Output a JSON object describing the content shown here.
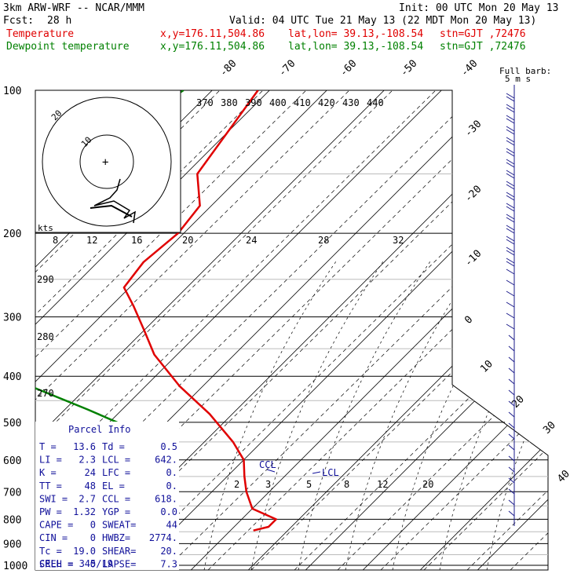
{
  "header": {
    "model": "3km ARW-WRF -- NCAR/MMM",
    "init": "Init: 00 UTC Mon 20 May 13",
    "fcst_label": "Fcst:",
    "fcst_value": "28 h",
    "valid": "Valid: 04 UTC Tue 21 May 13 (22 MDT Mon 20 May 13)"
  },
  "legend": [
    {
      "name": "Temperature",
      "coords": "x,y=176.11,504.86",
      "latlon": "lat,lon= 39.13,-108.54",
      "stn": "stn=GJT ,72476",
      "color": "#e00000"
    },
    {
      "name": "Dewpoint temperature",
      "coords": "x,y=176.11,504.86",
      "latlon": "lat,lon= 39.13,-108.54",
      "stn": "stn=GJT ,72476",
      "color": "#008000"
    }
  ],
  "chart_data": {
    "type": "line",
    "pressure_ticks": [
      "100",
      "200",
      "300",
      "400",
      "500",
      "600",
      "700",
      "800",
      "900",
      "1000"
    ],
    "isotherm_labels": [
      "-80",
      "-70",
      "-60",
      "-50",
      "-40",
      "-30",
      "-20",
      "-10",
      "0",
      "10",
      "20",
      "30",
      "40"
    ],
    "theta_labels": [
      "370",
      "380",
      "390",
      "400",
      "410",
      "420",
      "430",
      "440"
    ],
    "theta_side_labels": [
      "290",
      "280",
      "270"
    ],
    "mixing_ratio_labels": [
      "2",
      "3",
      "5",
      "8",
      "12",
      "20"
    ],
    "hodograph": {
      "speed_ticks": [
        "8",
        "12",
        "16",
        "20",
        "24",
        "28",
        "32"
      ],
      "unit": "kts",
      "ring_labels": [
        "10",
        "20"
      ]
    },
    "lcl_label": "LCL",
    "ccl_label": "CCL",
    "barb_key": "Full barb:",
    "barb_unit": "5 m s",
    "series": [
      {
        "name": "Temperature",
        "color": "#e00000",
        "points": [
          [
            100,
            -62
          ],
          [
            150,
            -58
          ],
          [
            175,
            -52
          ],
          [
            200,
            -51
          ],
          [
            230,
            -52
          ],
          [
            260,
            -51
          ],
          [
            285,
            -46
          ],
          [
            320,
            -40
          ],
          [
            360,
            -34
          ],
          [
            420,
            -24
          ],
          [
            480,
            -14
          ],
          [
            550,
            -5
          ],
          [
            600,
            0
          ],
          [
            650,
            3
          ],
          [
            700,
            6
          ],
          [
            760,
            10
          ],
          [
            800,
            16
          ],
          [
            830,
            16
          ],
          [
            845,
            14
          ]
        ]
      },
      {
        "name": "Dewpoint temperature",
        "color": "#008000",
        "points": [
          [
            100,
            -75
          ],
          [
            130,
            -80
          ],
          [
            170,
            -88
          ],
          [
            200,
            -88
          ],
          [
            250,
            -86
          ],
          [
            300,
            -78
          ],
          [
            360,
            -72
          ],
          [
            380,
            -66
          ],
          [
            420,
            -50
          ],
          [
            470,
            -36
          ],
          [
            520,
            -24
          ],
          [
            580,
            -16
          ],
          [
            640,
            -12
          ],
          [
            700,
            -10
          ],
          [
            760,
            -10
          ],
          [
            790,
            -10
          ],
          [
            815,
            -5
          ]
        ]
      }
    ]
  },
  "parcel_info": {
    "title": "Parcel Info",
    "rows": [
      [
        "T  =",
        "13.6",
        "Td =",
        "0.5"
      ],
      [
        "LI =",
        "2.3",
        "LCL =",
        "642."
      ],
      [
        "K  =",
        "24",
        "LFC =",
        "0."
      ],
      [
        "TT =",
        "48",
        "EL  =",
        "0."
      ],
      [
        "SWI =",
        "2.7",
        "CCL =",
        "618."
      ],
      [
        "PW =",
        "1.32",
        "YGP =",
        "0.0"
      ],
      [
        "CAPE =",
        "0",
        "SWEAT=",
        "44"
      ],
      [
        "CIN  =",
        "0",
        "HWBZ=",
        "2774."
      ],
      [
        "Tc  =",
        "19.0",
        "SHEAR=",
        "20."
      ],
      [
        "SREH =",
        "0",
        "LAPSE=",
        "7.3"
      ]
    ],
    "cell": "CELL = 345/19"
  }
}
